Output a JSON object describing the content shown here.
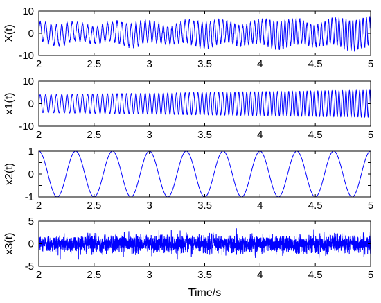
{
  "chart_data": [
    {
      "type": "line",
      "ylabel": "X(t)",
      "xlim": [
        2,
        5
      ],
      "ylim": [
        -10,
        10
      ],
      "xticks": [
        "2",
        "2.5",
        "3",
        "3.5",
        "4",
        "4.5",
        "5"
      ],
      "yticks": [
        "10",
        "0",
        "-10"
      ],
      "ytick_values": [
        10,
        0,
        -10
      ],
      "series": [
        {
          "signal": "x1 + x2 + x3",
          "description": "sum of chirp, sine and noise; amplitude about 6 at t=2 rising to about 9 at t=5"
        }
      ]
    },
    {
      "type": "line",
      "ylabel": "x1(t)",
      "xlim": [
        2,
        5
      ],
      "ylim": [
        -10,
        10
      ],
      "xticks": [
        "2",
        "2.5",
        "3",
        "3.5",
        "4",
        "4.5",
        "5"
      ],
      "yticks": [
        "10",
        "0",
        "-10"
      ],
      "ytick_values": [
        10,
        0,
        -10
      ],
      "series": [
        {
          "signal": "chirp",
          "amplitude_start": 4,
          "amplitude_end": 6,
          "freq_start_hz": 20,
          "freq_end_hz": 33
        }
      ]
    },
    {
      "type": "line",
      "ylabel": "x2(t)",
      "xlim": [
        2,
        5
      ],
      "ylim": [
        -1,
        1
      ],
      "xticks": [
        "2",
        "2.5",
        "3",
        "3.5",
        "4",
        "4.5",
        "5"
      ],
      "yticks": [
        "1",
        "0.5",
        "0",
        "-0.5",
        "-1"
      ],
      "ytick_values": [
        1,
        0.5,
        0,
        -0.5,
        -1
      ],
      "series": [
        {
          "signal": "sine",
          "amplitude": 1,
          "freq_hz": 3,
          "peaks_at": [
            2.333,
            2.667,
            3.0,
            3.333,
            3.667,
            4.0,
            4.333,
            4.667,
            5.0
          ]
        }
      ]
    },
    {
      "type": "line",
      "ylabel": "x3(t)",
      "xlabel": "Time/s",
      "xlim": [
        2,
        5
      ],
      "ylim": [
        -5,
        5
      ],
      "xticks": [
        "2",
        "2.5",
        "3",
        "3.5",
        "4",
        "4.5",
        "5"
      ],
      "yticks": [
        "5",
        "0",
        "-5"
      ],
      "ytick_values": [
        5,
        0,
        -5
      ],
      "series": [
        {
          "signal": "noise",
          "std": 1,
          "range": [
            -3.5,
            3.5
          ]
        }
      ]
    }
  ],
  "colors": {
    "line": "#0000ff",
    "axes": "#000000",
    "background": "#ffffff"
  }
}
